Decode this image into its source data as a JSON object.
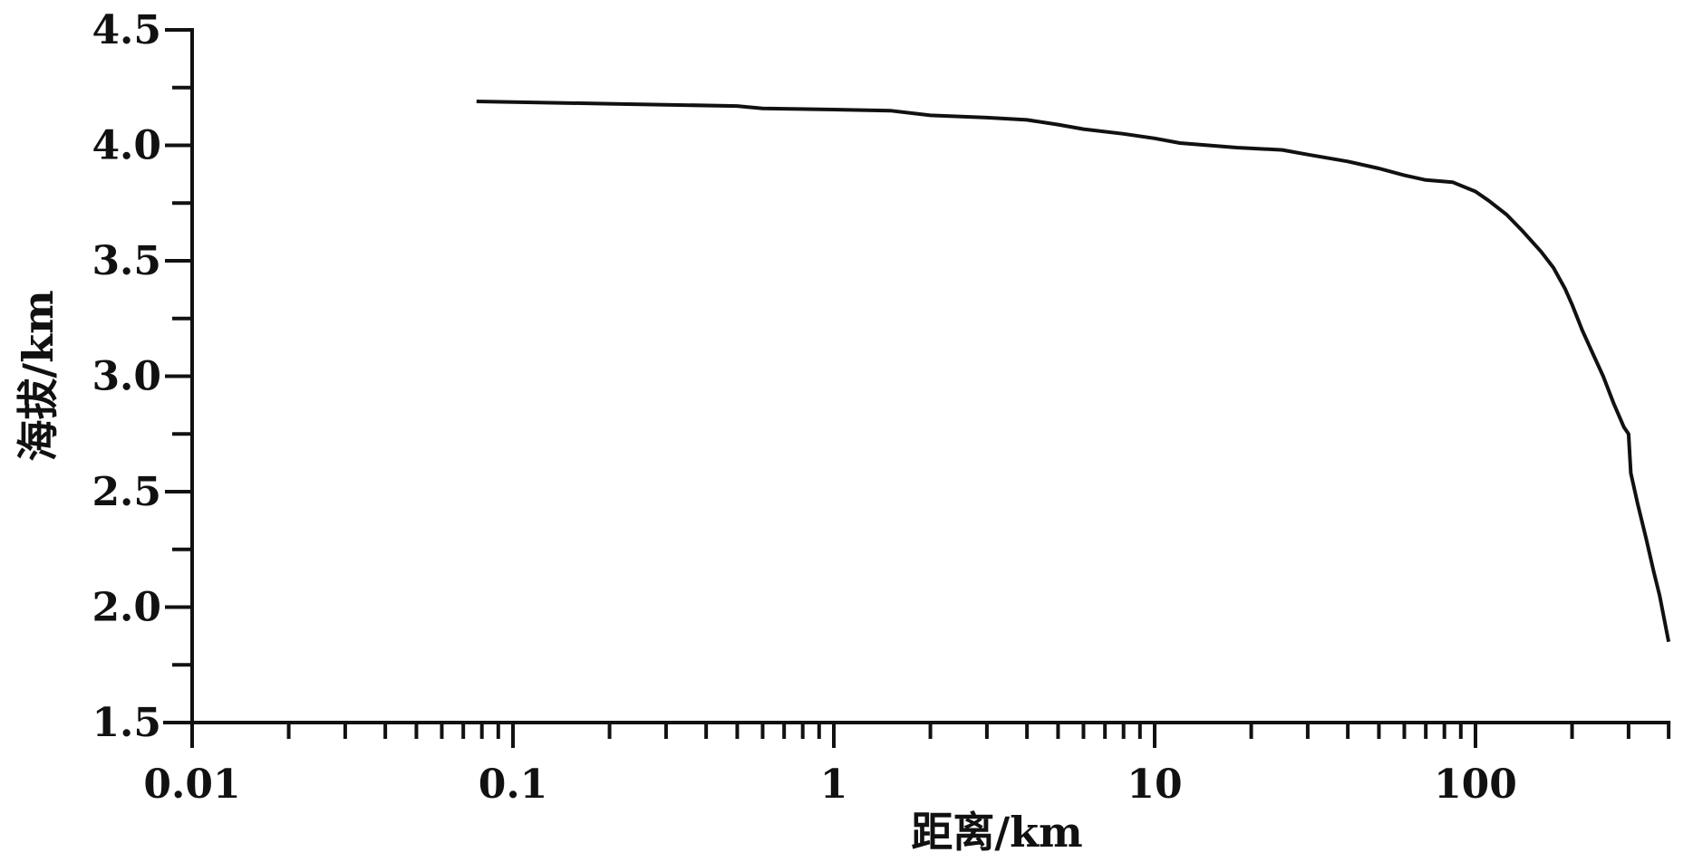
{
  "chart_data": {
    "type": "line",
    "title": "",
    "xlabel": "距离/km",
    "ylabel": "海拔/km",
    "xscale": "log",
    "xlim": [
      0.01,
      400
    ],
    "ylim": [
      1.5,
      4.5
    ],
    "grid": false,
    "x_tick_labels": [
      "0.01",
      "0.1",
      "1",
      "10",
      "100"
    ],
    "x_ticks": [
      0.01,
      0.1,
      1,
      10,
      100
    ],
    "y_tick_labels": [
      "1.5",
      "2.0",
      "2.5",
      "3.0",
      "3.5",
      "4.0",
      "4.5"
    ],
    "y_ticks": [
      1.5,
      2.0,
      2.5,
      3.0,
      3.5,
      4.0,
      4.5
    ],
    "line_color": "#111111",
    "series": [
      {
        "x": [
          0.077,
          0.2,
          0.5,
          0.6,
          1.0,
          1.5,
          2.0,
          3.0,
          4.0,
          5.0,
          6.0,
          8.0,
          10,
          12,
          18,
          25,
          30,
          40,
          50,
          60,
          70,
          85,
          100,
          110,
          125,
          140,
          160,
          175,
          190,
          200,
          215,
          230,
          250,
          270,
          290,
          300,
          305,
          320,
          340,
          360,
          375,
          400
        ],
        "y": [
          4.19,
          4.18,
          4.17,
          4.16,
          4.155,
          4.15,
          4.13,
          4.12,
          4.11,
          4.09,
          4.07,
          4.05,
          4.03,
          4.01,
          3.99,
          3.98,
          3.96,
          3.93,
          3.9,
          3.87,
          3.85,
          3.84,
          3.8,
          3.76,
          3.7,
          3.63,
          3.54,
          3.47,
          3.38,
          3.31,
          3.2,
          3.11,
          3.0,
          2.88,
          2.78,
          2.75,
          2.58,
          2.45,
          2.3,
          2.15,
          2.05,
          1.85
        ]
      }
    ]
  }
}
